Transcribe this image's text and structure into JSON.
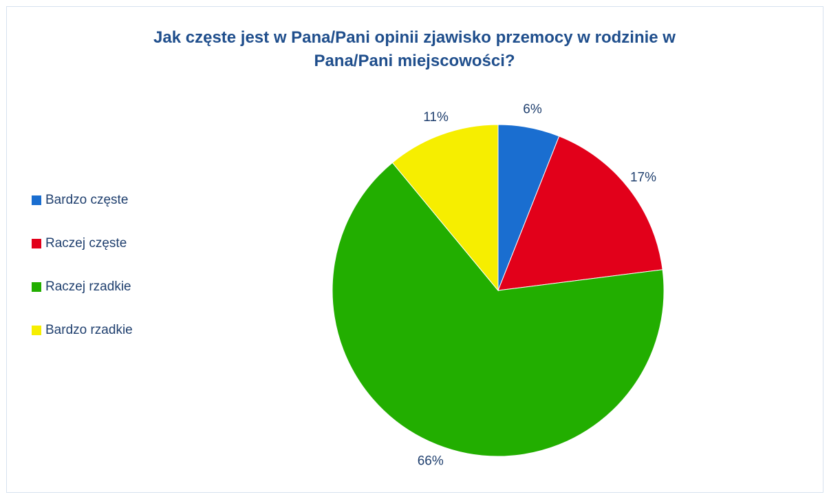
{
  "chart_data": {
    "type": "pie",
    "title": "Jak częste jest w Pana/Pani opinii zjawisko przemocy w rodzinie w Pana/Pani miejscowości?",
    "title_lines": [
      "Jak częste jest w Pana/Pani opinii zjawisko przemocy w rodzinie w",
      "Pana/Pani miejscowości?"
    ],
    "categories": [
      "Bardzo częste",
      "Raczej częste",
      "Raczej rzadkie",
      "Bardzo rzadkie"
    ],
    "values": [
      6,
      17,
      66,
      11
    ],
    "labels": [
      "6%",
      "17%",
      "66%",
      "11%"
    ],
    "colors": [
      "#1a6ed0",
      "#e2001a",
      "#22ae00",
      "#f6ee00"
    ],
    "legend_position": "left"
  }
}
